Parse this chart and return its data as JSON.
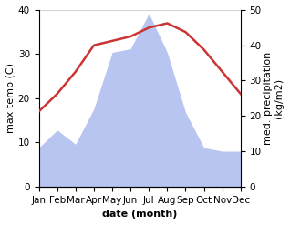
{
  "months": [
    "Jan",
    "Feb",
    "Mar",
    "Apr",
    "May",
    "Jun",
    "Jul",
    "Aug",
    "Sep",
    "Oct",
    "Nov",
    "Dec"
  ],
  "temperature": [
    17,
    21,
    26,
    32,
    33,
    34,
    36,
    37,
    35,
    31,
    26,
    21
  ],
  "precipitation": [
    11,
    16,
    12,
    22,
    38,
    39,
    49,
    38,
    21,
    11,
    10,
    10
  ],
  "temp_color": "#cc3333",
  "precip_fill_color": "#b8c5f0",
  "background_color": "#ffffff",
  "xlabel": "date (month)",
  "ylabel_left": "max temp (C)",
  "ylabel_right": "med. precipitation\n(kg/m2)",
  "ylim_left": [
    0,
    40
  ],
  "ylim_right": [
    0,
    50
  ],
  "yticks_left": [
    0,
    10,
    20,
    30,
    40
  ],
  "yticks_right": [
    0,
    10,
    20,
    30,
    40,
    50
  ],
  "xlabel_fontsize": 8,
  "ylabel_fontsize": 8,
  "tick_fontsize": 7.5
}
